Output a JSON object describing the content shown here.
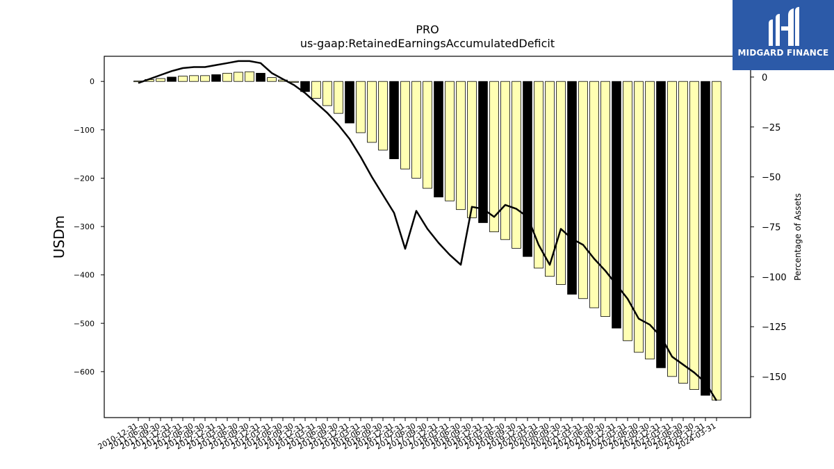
{
  "chart_data": {
    "type": "bar",
    "title": "PRO",
    "subtitle": "us-gaap:RetainedEarningsAccumulatedDeficit",
    "ylabel": "USDm",
    "y2label": "Percentage of Assets",
    "ylim": [
      -695,
      52
    ],
    "y2lim": [
      -170.5,
      10.4
    ],
    "yticks": [
      0,
      -100,
      -200,
      -300,
      -400,
      -500,
      -600
    ],
    "y2ticks": [
      0,
      -25,
      -50,
      -75,
      -100,
      -125,
      -150
    ],
    "grid": false,
    "categories": [
      "2010-12-31",
      "2011-06-30",
      "2011-09-30",
      "2011-12-31",
      "2012-03-31",
      "2012-06-30",
      "2012-09-30",
      "2012-12-31",
      "2013-03-31",
      "2013-06-30",
      "2013-09-30",
      "2013-12-31",
      "2014-03-31",
      "2014-06-30",
      "2014-09-30",
      "2014-12-31",
      "2015-03-31",
      "2015-06-30",
      "2015-09-30",
      "2015-12-31",
      "2016-03-31",
      "2016-06-30",
      "2016-09-30",
      "2016-12-31",
      "2017-03-31",
      "2017-06-30",
      "2017-09-30",
      "2017-12-31",
      "2018-03-31",
      "2018-06-30",
      "2018-09-30",
      "2018-12-31",
      "2019-03-31",
      "2019-06-30",
      "2019-09-30",
      "2019-12-31",
      "2020-03-31",
      "2020-06-30",
      "2020-09-30",
      "2020-12-31",
      "2021-03-31",
      "2021-06-30",
      "2021-09-30",
      "2021-12-31",
      "2022-03-31",
      "2022-06-30",
      "2022-09-30",
      "2022-12-31",
      "2023-03-31",
      "2023-06-30",
      "2023-09-30",
      "2023-12-31",
      "2024-03-31"
    ],
    "series": [
      {
        "type": "bar",
        "values": [
          1,
          4,
          6,
          9,
          11,
          12,
          12,
          14,
          17,
          19,
          20,
          17,
          8,
          3,
          -2,
          -21,
          -35,
          -50,
          -66,
          -86,
          -106,
          -126,
          -142,
          -160,
          -181,
          -200,
          -221,
          -239,
          -247,
          -265,
          -282,
          -292,
          -311,
          -327,
          -345,
          -362,
          -386,
          -403,
          -420,
          -440,
          -449,
          -468,
          -486,
          -510,
          -536,
          -560,
          -574,
          -592,
          -610,
          -624,
          -637,
          -649,
          -659
        ],
        "highlight": [
          false,
          false,
          false,
          true,
          false,
          false,
          false,
          true,
          false,
          false,
          false,
          true,
          false,
          false,
          false,
          true,
          false,
          false,
          false,
          true,
          false,
          false,
          false,
          true,
          false,
          false,
          false,
          true,
          false,
          false,
          false,
          true,
          false,
          false,
          false,
          true,
          false,
          false,
          false,
          true,
          false,
          false,
          false,
          true,
          false,
          false,
          false,
          true,
          false,
          false,
          false,
          true,
          false
        ],
        "color": "#ffffb3",
        "highlight_color": "#000000"
      },
      {
        "type": "line",
        "axis": "right",
        "color": "#000000",
        "values": [
          -3,
          -1,
          1,
          3,
          4.5,
          5,
          5,
          6,
          7,
          8,
          8,
          7,
          2,
          -1,
          -4,
          -8,
          -13,
          -18,
          -24,
          -31,
          -40,
          -50,
          -59,
          -68,
          -86,
          -67,
          -76,
          -83,
          -89,
          -94,
          -65,
          -66,
          -70,
          -64,
          -66,
          -70,
          -84,
          -94,
          -76,
          -81,
          -84,
          -91,
          -97,
          -104,
          -111,
          -121,
          -124,
          -130,
          -140,
          -144,
          -148,
          -153,
          -162
        ]
      }
    ]
  },
  "logo": {
    "text": "MIDGARD FINANCE",
    "icon": "midgard-finance-logo-icon"
  }
}
